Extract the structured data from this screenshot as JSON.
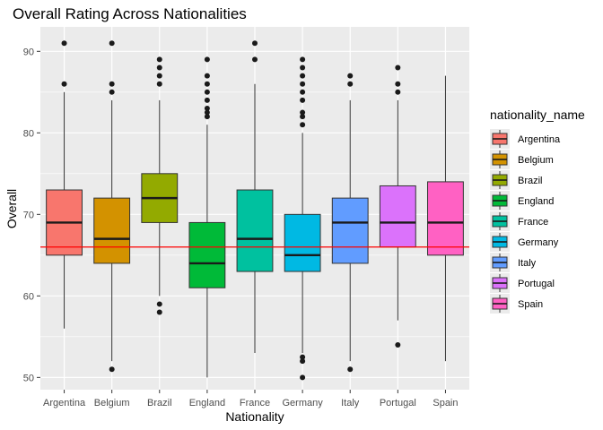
{
  "chart_data": {
    "type": "boxplot",
    "title": "Overall Rating Across Nationalities",
    "xlabel": "Nationality",
    "ylabel": "Overall",
    "ylim": [
      48.5,
      93
    ],
    "yticks": [
      50,
      60,
      70,
      80,
      90
    ],
    "reference_line": {
      "y": 66,
      "color": "#ff0000"
    },
    "grid": true,
    "panel_background": "#ebebeb",
    "legend": {
      "title": "nationality_name",
      "position": "right"
    },
    "categories": [
      "Argentina",
      "Belgium",
      "Brazil",
      "England",
      "France",
      "Germany",
      "Italy",
      "Portugal",
      "Spain"
    ],
    "series": [
      {
        "name": "Argentina",
        "color": "#F8766D",
        "min": 56,
        "q1": 65,
        "median": 69,
        "q3": 73,
        "max": 85,
        "outliers": [
          86,
          91
        ]
      },
      {
        "name": "Belgium",
        "color": "#D39200",
        "min": 52,
        "q1": 64,
        "median": 67,
        "q3": 72,
        "max": 84,
        "outliers": [
          51,
          85,
          86,
          91
        ]
      },
      {
        "name": "Brazil",
        "color": "#93AA00",
        "min": 60,
        "q1": 69,
        "median": 72,
        "q3": 75,
        "max": 84,
        "outliers": [
          58,
          59,
          86,
          87,
          88,
          89
        ]
      },
      {
        "name": "England",
        "color": "#00BA38",
        "min": 50,
        "q1": 61,
        "median": 64,
        "q3": 69,
        "max": 81,
        "outliers": [
          82,
          82.5,
          83,
          84,
          85,
          86,
          87,
          89
        ]
      },
      {
        "name": "France",
        "color": "#00C19F",
        "min": 53,
        "q1": 63,
        "median": 67,
        "q3": 73,
        "max": 86,
        "outliers": [
          89,
          91
        ]
      },
      {
        "name": "Germany",
        "color": "#00B9E3",
        "min": 53,
        "q1": 63,
        "median": 65,
        "q3": 70,
        "max": 80,
        "outliers": [
          50,
          52,
          52.5,
          81,
          82,
          82.5,
          84,
          85,
          86,
          87,
          88,
          89
        ]
      },
      {
        "name": "Italy",
        "color": "#619CFF",
        "min": 52,
        "q1": 64,
        "median": 69,
        "q3": 72,
        "max": 84,
        "outliers": [
          51,
          86,
          87
        ]
      },
      {
        "name": "Portugal",
        "color": "#DB72FB",
        "min": 57,
        "q1": 66,
        "median": 69,
        "q3": 73.5,
        "max": 84,
        "outliers": [
          54,
          85,
          86,
          88
        ]
      },
      {
        "name": "Spain",
        "color": "#FF61C3",
        "min": 52,
        "q1": 65,
        "median": 69,
        "q3": 74,
        "max": 87,
        "outliers": []
      }
    ]
  }
}
